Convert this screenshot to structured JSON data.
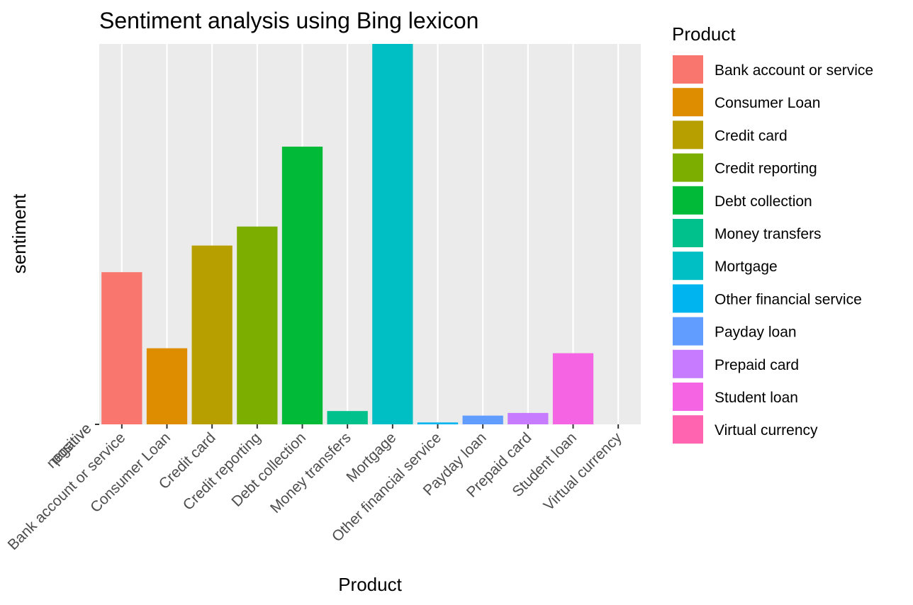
{
  "chart_data": {
    "type": "bar",
    "title": "Sentiment analysis using Bing lexicon",
    "xlabel": "Product",
    "ylabel": "sentiment",
    "y_tick_labels": [
      "negative",
      "positive"
    ],
    "categories": [
      "Bank account or service",
      "Consumer Loan",
      "Credit card",
      "Credit reporting",
      "Debt collection",
      "Money transfers",
      "Mortgage",
      "Other financial service",
      "Payday loan",
      "Prepaid card",
      "Student loan",
      "Virtual currency"
    ],
    "values": [
      40,
      20,
      47,
      52,
      73,
      3.5,
      100,
      0.5,
      2.3,
      3.0,
      18.7,
      0
    ],
    "value_note": "relative scale; Mortgage = 100",
    "colors": [
      "#F8766D",
      "#DE8C00",
      "#B79F00",
      "#7CAE00",
      "#00BA38",
      "#00C08B",
      "#00BFC4",
      "#00B4F0",
      "#619CFF",
      "#C77CFF",
      "#F564E3",
      "#FF64B0"
    ],
    "legend": {
      "title": "Product",
      "position": "right"
    },
    "grid": true,
    "panel_background": "#EBEBEB"
  }
}
